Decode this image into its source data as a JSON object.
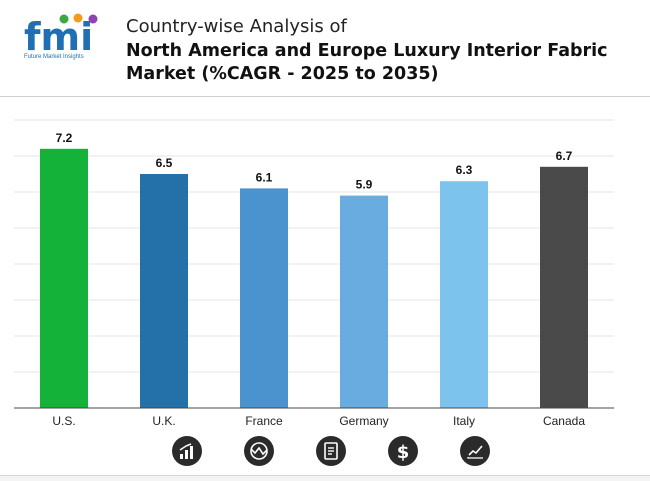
{
  "header": {
    "logo_text": "fmi",
    "logo_tagline": "Future Market Insights",
    "title_line1": "Country-wise Analysis of",
    "title_line2": "North America and Europe Luxury Interior Fabric Market (%CAGR - 2025 to 2035)"
  },
  "chart_data": {
    "type": "bar",
    "title": "Country-wise Analysis of North America and Europe Luxury Interior Fabric Market (%CAGR - 2025 to 2035)",
    "categories": [
      "U.S.",
      "U.K.",
      "France",
      "Germany",
      "Italy",
      "Canada"
    ],
    "values": [
      7.2,
      6.5,
      6.1,
      5.9,
      6.3,
      6.7
    ],
    "colors": [
      "#15b23a",
      "#2470a8",
      "#4b93cf",
      "#69ace0",
      "#7cc4ee",
      "#4a4a4a"
    ],
    "xlabel": "",
    "ylabel": "",
    "ylim": [
      0,
      8
    ],
    "grid": true
  },
  "footer": {
    "icons": [
      "bar-chart-icon",
      "analysis-chart-icon",
      "report-document-icon",
      "dollar-icon",
      "trend-graph-icon"
    ]
  }
}
